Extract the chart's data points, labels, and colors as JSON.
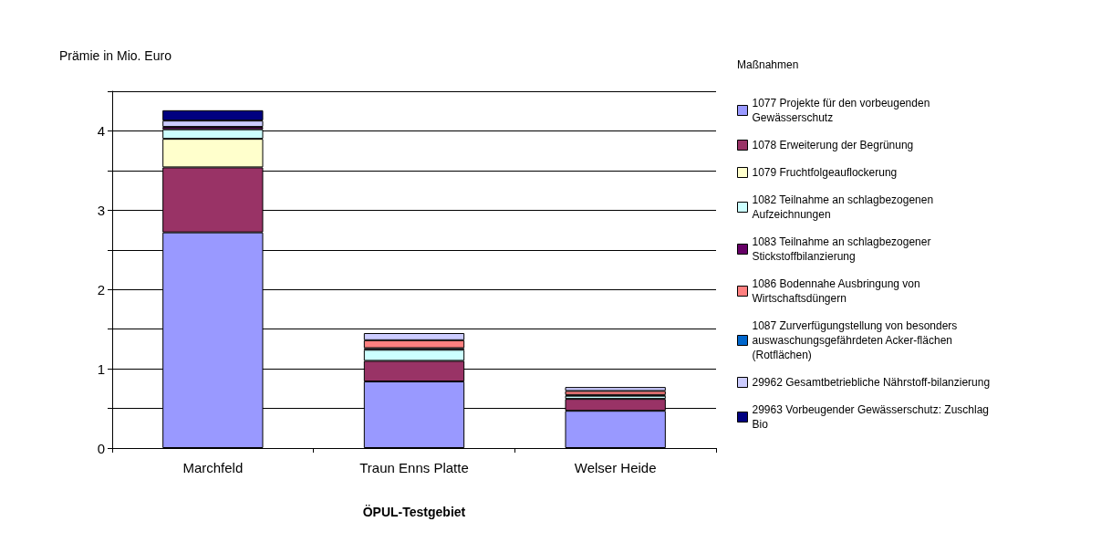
{
  "chart_data": {
    "type": "bar",
    "stacked": true,
    "ylabel": "Prämie in Mio. Euro",
    "xlabel": "ÖPUL-Testgebiet",
    "legend_title": "Maßnahmen",
    "legend": "right",
    "grid": "y",
    "categories": [
      "Marchfeld",
      "Traun Enns Platte",
      "Welser Heide"
    ],
    "ylim": [
      0,
      4.5
    ],
    "yticks": [
      0,
      {
        "value": 0.5,
        "label": null
      },
      1,
      {
        "value": 1.5,
        "label": null
      },
      2,
      {
        "value": 2.5,
        "label": null
      },
      3,
      {
        "value": 3.5,
        "label": null
      },
      4,
      {
        "value": 4.5,
        "label": null
      }
    ],
    "series": [
      {
        "name": "1077 Projekte für den vorbeugenden Gewässerschutz",
        "color": "#9999ff",
        "values": [
          2.72,
          0.84,
          0.47
        ]
      },
      {
        "name": "1078 Erweiterung der Begrünung",
        "color": "#993366",
        "values": [
          0.82,
          0.26,
          0.15
        ]
      },
      {
        "name": "1079 Fruchtfolgeauflockerung",
        "color": "#ffffcc",
        "values": [
          0.36,
          0,
          0
        ]
      },
      {
        "name": "1082 Teilnahme an schlagbezogenen Aufzeichnungen",
        "color": "#ccffff",
        "values": [
          0.12,
          0.14,
          0.04
        ]
      },
      {
        "name": "1083 Teilnahme an schlagbezogener Stickstoffbilanzierung",
        "color": "#660066",
        "values": [
          0.03,
          0.02,
          0.01
        ]
      },
      {
        "name": "1086 Bodennahe Ausbringung von Wirtschaftsdüngern",
        "color": "#ff8080",
        "values": [
          0,
          0.1,
          0.05
        ]
      },
      {
        "name": "1087 Zurverfügungstellung von besonders auswaschungsgefährdeten Acker-flächen (Rotflächen)",
        "color": "#0066cc",
        "values": [
          0,
          0,
          0
        ]
      },
      {
        "name": "29962 Gesamtbetriebliche Nährstoff-bilanzierung",
        "color": "#ccccff",
        "values": [
          0.08,
          0.09,
          0.05
        ]
      },
      {
        "name": "29963 Vorbeugender Gewässerschutz: Zuschlag Bio",
        "color": "#000080",
        "values": [
          0.13,
          0,
          0
        ]
      }
    ]
  }
}
